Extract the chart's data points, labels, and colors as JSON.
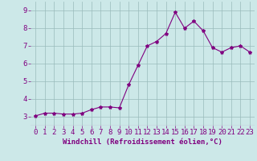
{
  "x": [
    0,
    1,
    2,
    3,
    4,
    5,
    6,
    7,
    8,
    9,
    10,
    11,
    12,
    13,
    14,
    15,
    16,
    17,
    18,
    19,
    20,
    21,
    22,
    23
  ],
  "y": [
    3.05,
    3.2,
    3.2,
    3.15,
    3.15,
    3.2,
    3.4,
    3.55,
    3.55,
    3.5,
    4.8,
    5.9,
    7.0,
    7.25,
    7.7,
    8.9,
    8.0,
    8.4,
    7.85,
    6.9,
    6.65,
    6.9,
    7.0,
    6.65
  ],
  "line_color": "#800080",
  "marker": "*",
  "marker_size": 3,
  "bg_color": "#cce8e8",
  "grid_color": "#99bbbb",
  "xlabel": "Windchill (Refroidissement éolien,°C)",
  "tick_color": "#800080",
  "ylim": [
    2.5,
    9.5
  ],
  "xlim": [
    -0.5,
    23.5
  ],
  "yticks": [
    3,
    4,
    5,
    6,
    7,
    8,
    9
  ],
  "xticks": [
    0,
    1,
    2,
    3,
    4,
    5,
    6,
    7,
    8,
    9,
    10,
    11,
    12,
    13,
    14,
    15,
    16,
    17,
    18,
    19,
    20,
    21,
    22,
    23
  ],
  "xtick_labels": [
    "0",
    "1",
    "2",
    "3",
    "4",
    "5",
    "6",
    "7",
    "8",
    "9",
    "10",
    "11",
    "12",
    "13",
    "14",
    "15",
    "16",
    "17",
    "18",
    "19",
    "20",
    "21",
    "22",
    "23"
  ],
  "font_size_xlabel": 6.5,
  "font_size_tick": 6.5
}
